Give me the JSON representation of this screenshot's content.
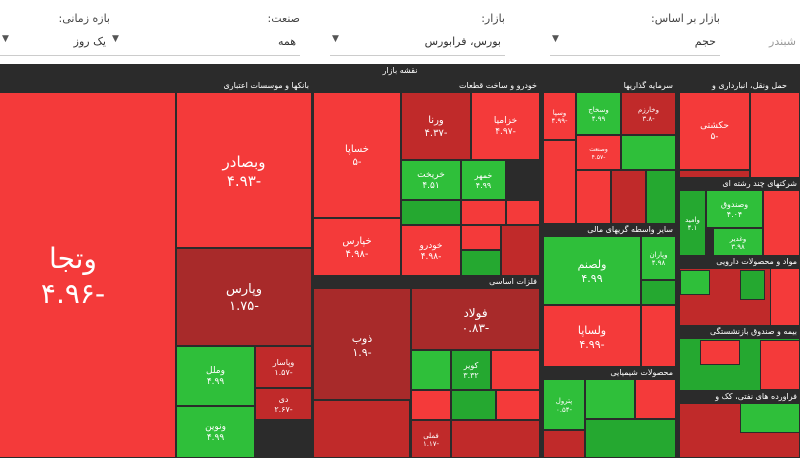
{
  "filters": [
    {
      "label": "بازار بر اساس:",
      "value": "حجم"
    },
    {
      "label": "بازار:",
      "value": "بورس، فرابورس"
    },
    {
      "label": "صنعت:",
      "value": "همه"
    },
    {
      "label": "بازه زمانی:",
      "value": "یک روز"
    }
  ],
  "search": "شبندر",
  "map": {
    "title": "نقشه بازار",
    "sectors": [
      "بانکها و موسسات اعتباری",
      "خودرو و ساخت قطعات",
      "سرمایه گذاریها",
      "حمل ونقل، انبارداری و",
      "فلزات اساسی",
      "سایر واسطه گریهای مالی",
      "محصولات شیمیایی",
      "شرکتهای چند رشته ای",
      "مواد و محصولات دارویی",
      "بیمه و صندوق بازنشستگی",
      "فراورده های نفتی، کک و"
    ],
    "tiles": [
      {
        "symbol": "وتجا",
        "change": "-۴.۹۶"
      },
      {
        "symbol": "وبصادر",
        "change": "-۴.۹۳"
      },
      {
        "symbol": "وپارس",
        "change": "-۱.۷۵"
      },
      {
        "symbol": "وملل",
        "change": "۴.۹۹"
      },
      {
        "symbol": "وپاسار",
        "change": "-۱.۵۷"
      },
      {
        "symbol": "ونوین",
        "change": "۴.۹۹"
      },
      {
        "symbol": "دی",
        "change": "-۲.۶۷"
      },
      {
        "symbol": "خساپا",
        "change": "-۵"
      },
      {
        "symbol": "ورنا",
        "change": "-۴.۳۷"
      },
      {
        "symbol": "خزامیا",
        "change": "-۴.۹۷"
      },
      {
        "symbol": "خریخت",
        "change": "۴.۵۱"
      },
      {
        "symbol": "خمهر",
        "change": "۴.۹۹"
      },
      {
        "symbol": "خپارس",
        "change": "-۴.۹۸"
      },
      {
        "symbol": "خودرو",
        "change": "-۴.۹۸"
      },
      {
        "symbol": "ذوب",
        "change": "-۱.۹"
      },
      {
        "symbol": "فولاد",
        "change": "-۰.۸۳"
      },
      {
        "symbol": "کویر",
        "change": "۳.۳۲"
      },
      {
        "symbol": "فملی",
        "change": "-۱.۱۷"
      },
      {
        "symbol": "وسپا",
        "change": "-۴.۹۹"
      },
      {
        "symbol": "وسخاج",
        "change": "۴.۹۹"
      },
      {
        "symbol": "وخارزم",
        "change": "-۳.۸"
      },
      {
        "symbol": "وصنعت",
        "change": "-۴.۵۷"
      },
      {
        "symbol": "حکشتی",
        "change": "-۵"
      },
      {
        "symbol": "ولصنم",
        "change": "۴.۹۹"
      },
      {
        "symbol": "ولساپا",
        "change": "-۴.۹۹"
      },
      {
        "symbol": "وپاران",
        "change": "۴.۹۸"
      },
      {
        "symbol": "پترول",
        "change": "-۰.۵۴"
      },
      {
        "symbol": "وصندوق",
        "change": "۴.۰۴"
      },
      {
        "symbol": "وامید",
        "change": "۴.۱"
      },
      {
        "symbol": "وغدیر",
        "change": "۳.۹۸"
      }
    ]
  }
}
